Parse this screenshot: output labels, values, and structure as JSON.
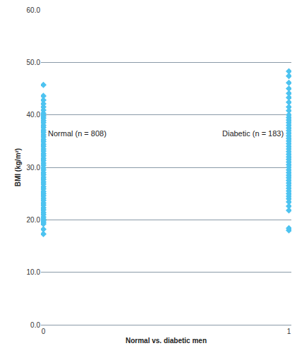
{
  "chart_data": {
    "type": "scatter",
    "x_label": "Normal vs. diabetic men",
    "y_label": "BMI (kg/m²)",
    "color": "#4dc3f0",
    "marker": "diamond",
    "grid": true,
    "series": [
      {
        "x": 0,
        "values": [
          17.3,
          18.2,
          19.2,
          19.5,
          19.8,
          20.1,
          20.5,
          21,
          21.4,
          21.9,
          22.3,
          22.8,
          23.2,
          23.7,
          24.1,
          24.6,
          25,
          25.4,
          25.9,
          26.3,
          26.8,
          27.2,
          27.7,
          28.1,
          28.6,
          29,
          29.5,
          29.9,
          30.4,
          30.8,
          31.3,
          31.7,
          32.2,
          32.6,
          33.1,
          33.5,
          34,
          34.4,
          34.9,
          35.3,
          35.8,
          36.2,
          36.7,
          37.1,
          37.6,
          38,
          38.5,
          38.9,
          39.4,
          39.8,
          40.3,
          40.9,
          41.5,
          42.1,
          42.8,
          43.6,
          45.7
        ]
      },
      {
        "x": 1,
        "values": [
          18,
          18.4,
          21.8,
          22.6,
          23.4,
          24,
          24.5,
          25,
          25.5,
          26,
          26.5,
          27,
          27.5,
          28,
          28.5,
          29,
          29.5,
          30,
          30.5,
          31,
          31.5,
          32,
          32.5,
          33,
          33.5,
          34,
          34.5,
          35,
          35.5,
          36,
          36.5,
          37,
          37.5,
          38,
          38.5,
          39,
          39.5,
          40,
          40.8,
          41.5,
          42.4,
          43.3,
          44.1,
          45,
          46.1,
          47.4,
          48.3
        ]
      }
    ],
    "annotations": [
      {
        "text": "Normal (n = 808)",
        "x": 0,
        "y": 36.5
      },
      {
        "text": "Diabetic (n = 183)",
        "x": 1,
        "y": 36.5
      }
    ],
    "xlim": [
      -0.01,
      1.01
    ],
    "xticks": [
      0,
      1
    ],
    "ylim": [
      0,
      60
    ],
    "yticks": [
      {
        "value": 0,
        "label": "0.0"
      },
      {
        "value": 10,
        "label": "10.0"
      },
      {
        "value": 20,
        "label": "20.0"
      },
      {
        "value": 30,
        "label": "30.0"
      },
      {
        "value": 40,
        "label": "40.0"
      },
      {
        "value": 50,
        "label": "50.0"
      },
      {
        "value": 60,
        "label": "60.0"
      }
    ]
  }
}
